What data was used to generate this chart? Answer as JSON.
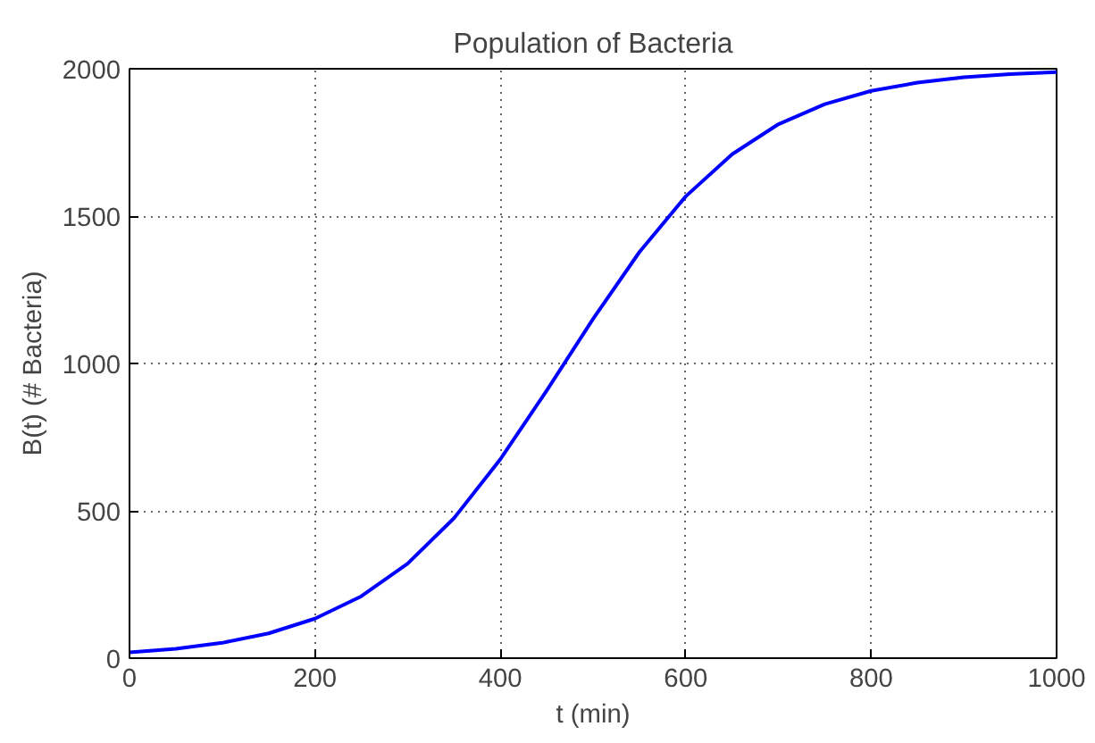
{
  "chart_data": {
    "type": "line",
    "title": "Population of Bacteria",
    "xlabel": "t (min)",
    "ylabel": "B(t) (# Bacteria)",
    "x": [
      0,
      50,
      100,
      150,
      200,
      250,
      300,
      350,
      400,
      450,
      500,
      550,
      600,
      650,
      700,
      750,
      800,
      850,
      900,
      950,
      1000
    ],
    "series": [
      {
        "color": "#0000ff",
        "values": [
          20,
          32,
          52,
          84,
          134,
          210,
          321,
          475,
          675,
          908,
          1151,
          1378,
          1567,
          1710,
          1812,
          1880,
          1925,
          1953,
          1971,
          1982,
          1989
        ]
      }
    ],
    "xlim": [
      0,
      1000
    ],
    "xticks": [
      0,
      200,
      400,
      600,
      800,
      1000
    ],
    "ylim": [
      0,
      2000
    ],
    "yticks": [
      0,
      500,
      1000,
      1500,
      2000
    ],
    "grid": true,
    "line_style": "solid",
    "marker": "none"
  }
}
